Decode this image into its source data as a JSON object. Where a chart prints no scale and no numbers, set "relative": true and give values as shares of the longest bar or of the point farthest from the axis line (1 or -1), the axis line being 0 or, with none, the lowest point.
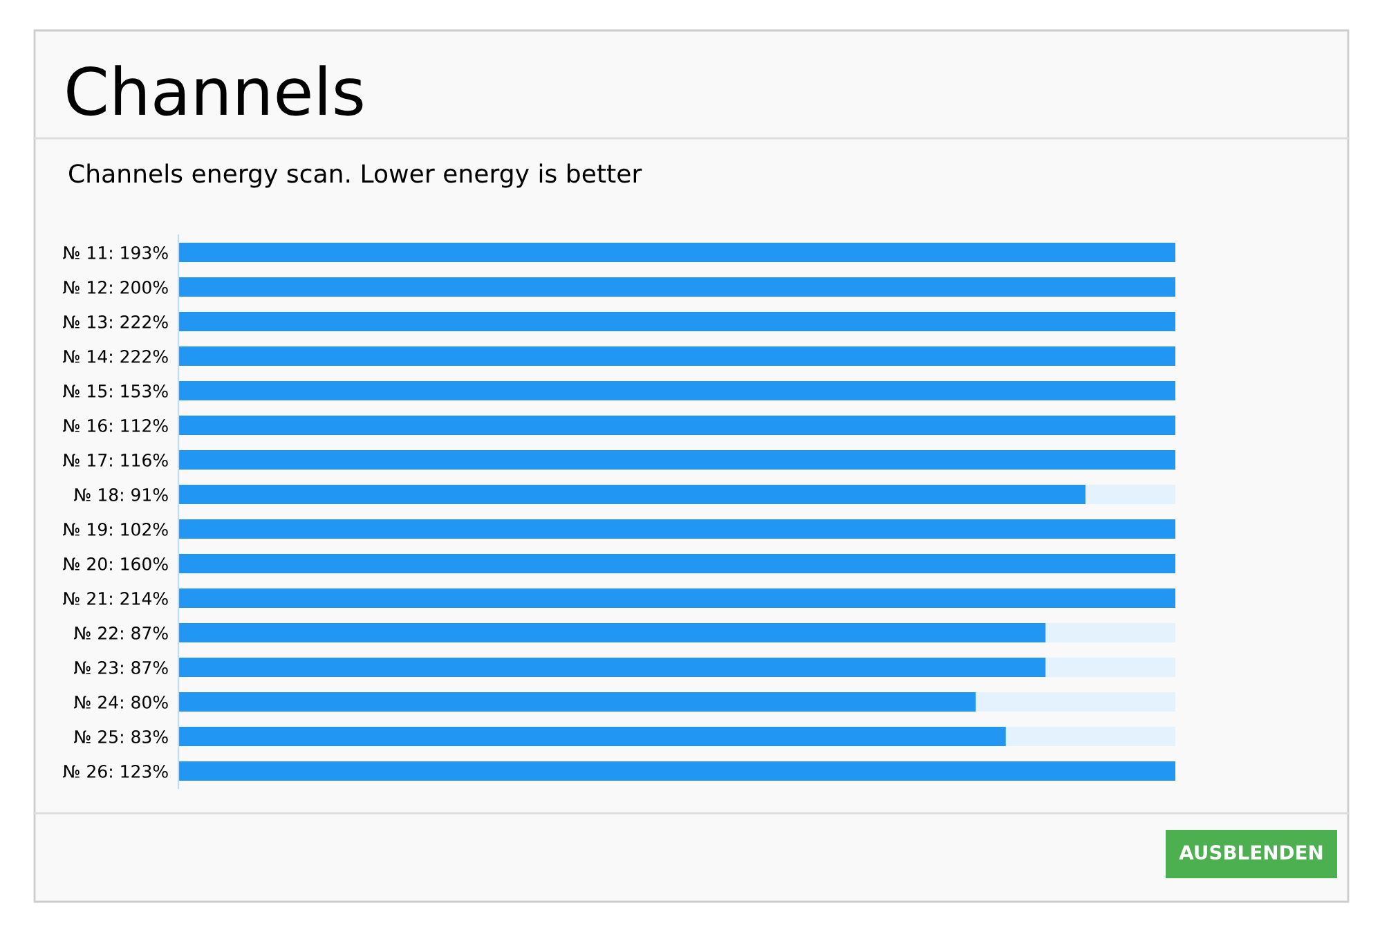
{
  "chart_data": {
    "type": "bar",
    "orientation": "horizontal",
    "stacked": true,
    "relative": true,
    "title": "Channels",
    "subtitle": "Channels energy scan. Lower energy is better",
    "categories": [
      "№ 11: 193%",
      "№ 12: 200%",
      "№ 13: 222%",
      "№ 14: 222%",
      "№ 15: 153%",
      "№ 16: 112%",
      "№ 17: 116%",
      "№ 18: 91%",
      "№ 19: 102%",
      "№ 20: 160%",
      "№ 21: 214%",
      "№ 22: 87%",
      "№ 23: 87%",
      "№ 24: 80%",
      "№ 25: 83%",
      "№ 26: 123%"
    ],
    "series": [
      {
        "color": "#2196f3",
        "values": [
          1,
          1,
          1,
          1,
          1,
          1,
          1,
          0.91,
          1,
          1,
          1,
          0.87,
          0.87,
          0.8,
          0.83,
          1
        ]
      },
      {
        "color": "#e3f2fd",
        "values": [
          0,
          0,
          0,
          0,
          0,
          0,
          0,
          0.09,
          0,
          0,
          0,
          0.13,
          0.13,
          0.2,
          0.17,
          0
        ]
      }
    ],
    "annotations": [
      "AUSBLENDEN"
    ]
  }
}
